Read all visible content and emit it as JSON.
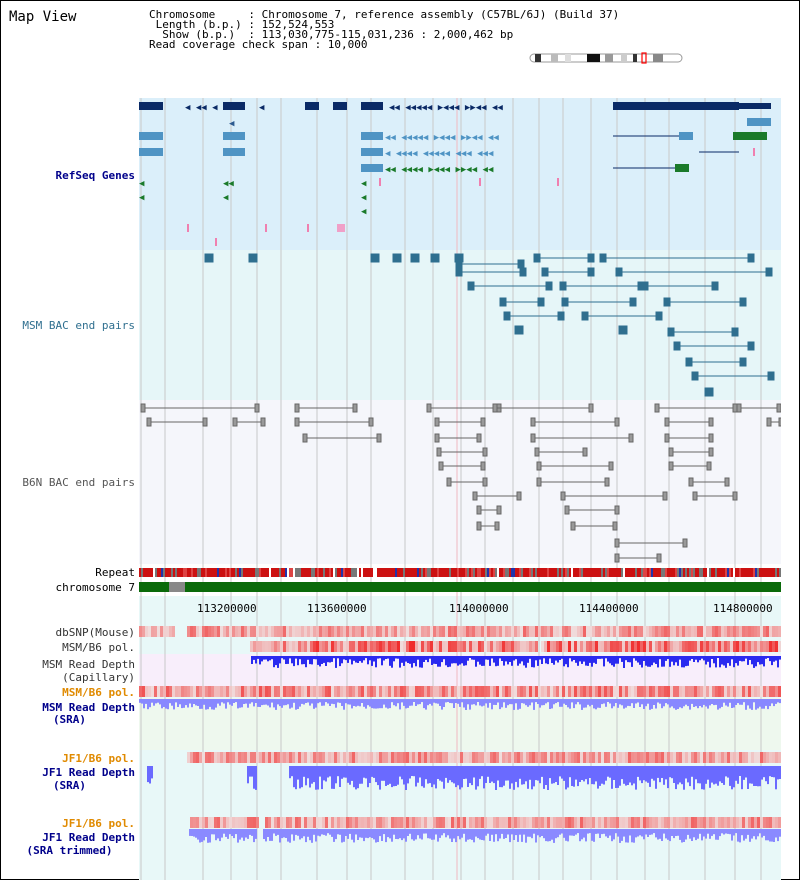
{
  "page": {
    "title": "Map View"
  },
  "header": {
    "lines": [
      "Chromosome     : Chromosome 7, reference assembly (C57BL/6J) (Build 37)",
      " Length (b.p.) : 152,524,553",
      "  Show (b.p.)  : 113,030,775-115,031,236 : 2,000,462 bp",
      "Read coverage check span : 10,000"
    ]
  },
  "tracks": {
    "refseq": {
      "label": "RefSeq Genes",
      "color": "#00008b"
    },
    "msm_bac": {
      "label": "MSM BAC end pairs",
      "color": "#2f6f8f"
    },
    "b6n_bac": {
      "label": "B6N BAC end pairs",
      "color": "#555555"
    },
    "repeat": {
      "label": "Repeat"
    },
    "chromosome": {
      "label": "chromosome 7"
    },
    "dbsnp": {
      "label": "dbSNP(Mouse)"
    },
    "msm_b6_pol_cap": {
      "label": "MSM/B6 pol."
    },
    "msm_depth_cap": {
      "label1": "MSM Read Depth",
      "label2": "(Capillary)"
    },
    "msm_b6_pol_sra": {
      "label": "MSM/B6 pol.",
      "color": "#e08a00"
    },
    "msm_depth_sra": {
      "label1": "MSM Read Depth",
      "label2": "(SRA)",
      "color": "#00008b"
    },
    "jf1_b6_pol_sra": {
      "label": "JF1/B6 pol.",
      "color": "#e08a00"
    },
    "jf1_depth_sra": {
      "label1": "JF1 Read Depth",
      "label2": "(SRA)",
      "color": "#00008b"
    },
    "jf1_b6_pol_trim": {
      "label": "JF1/B6 pol.",
      "color": "#e08a00"
    },
    "jf1_depth_trim": {
      "label1": "JF1 Read Depth",
      "label2": "(SRA trimmed)",
      "color": "#00008b"
    }
  },
  "axis": {
    "ticks": [
      "113200000",
      "113600000",
      "114000000",
      "114400000",
      "114800000"
    ]
  }
}
